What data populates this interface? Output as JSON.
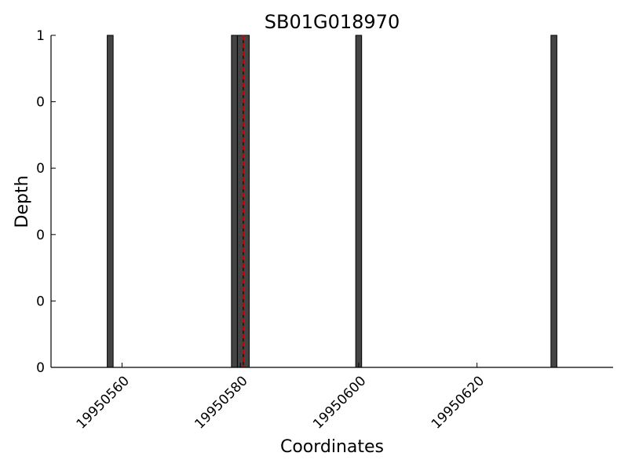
{
  "chart_data": {
    "type": "bar",
    "title": "SB01G018970",
    "xlabel": "Coordinates",
    "ylabel": "Depth",
    "xlim": [
      19950548,
      19950643
    ],
    "ylim": [
      0,
      1
    ],
    "x_ticks": [
      19950560,
      19950580,
      19950600,
      19950620
    ],
    "x_tick_labels": [
      "19950560",
      "19950580",
      "19950600",
      "19950620"
    ],
    "y_ticks": [
      0,
      0.2,
      0.4,
      0.6,
      0.8,
      1.0
    ],
    "y_tick_labels": [
      "0",
      "0",
      "0",
      "0",
      "0",
      "1"
    ],
    "grid": false,
    "bar_width": 1,
    "bar_color": "#444444",
    "marker_color": "#cc0000",
    "bars": [
      {
        "x": 19950558,
        "depth": 1
      },
      {
        "x": 19950579,
        "depth": 1
      },
      {
        "x": 19950580,
        "depth": 1
      },
      {
        "x": 19950581,
        "depth": 1
      },
      {
        "x": 19950600,
        "depth": 1
      },
      {
        "x": 19950633,
        "depth": 1
      }
    ],
    "marker_x": 19950580.5
  }
}
